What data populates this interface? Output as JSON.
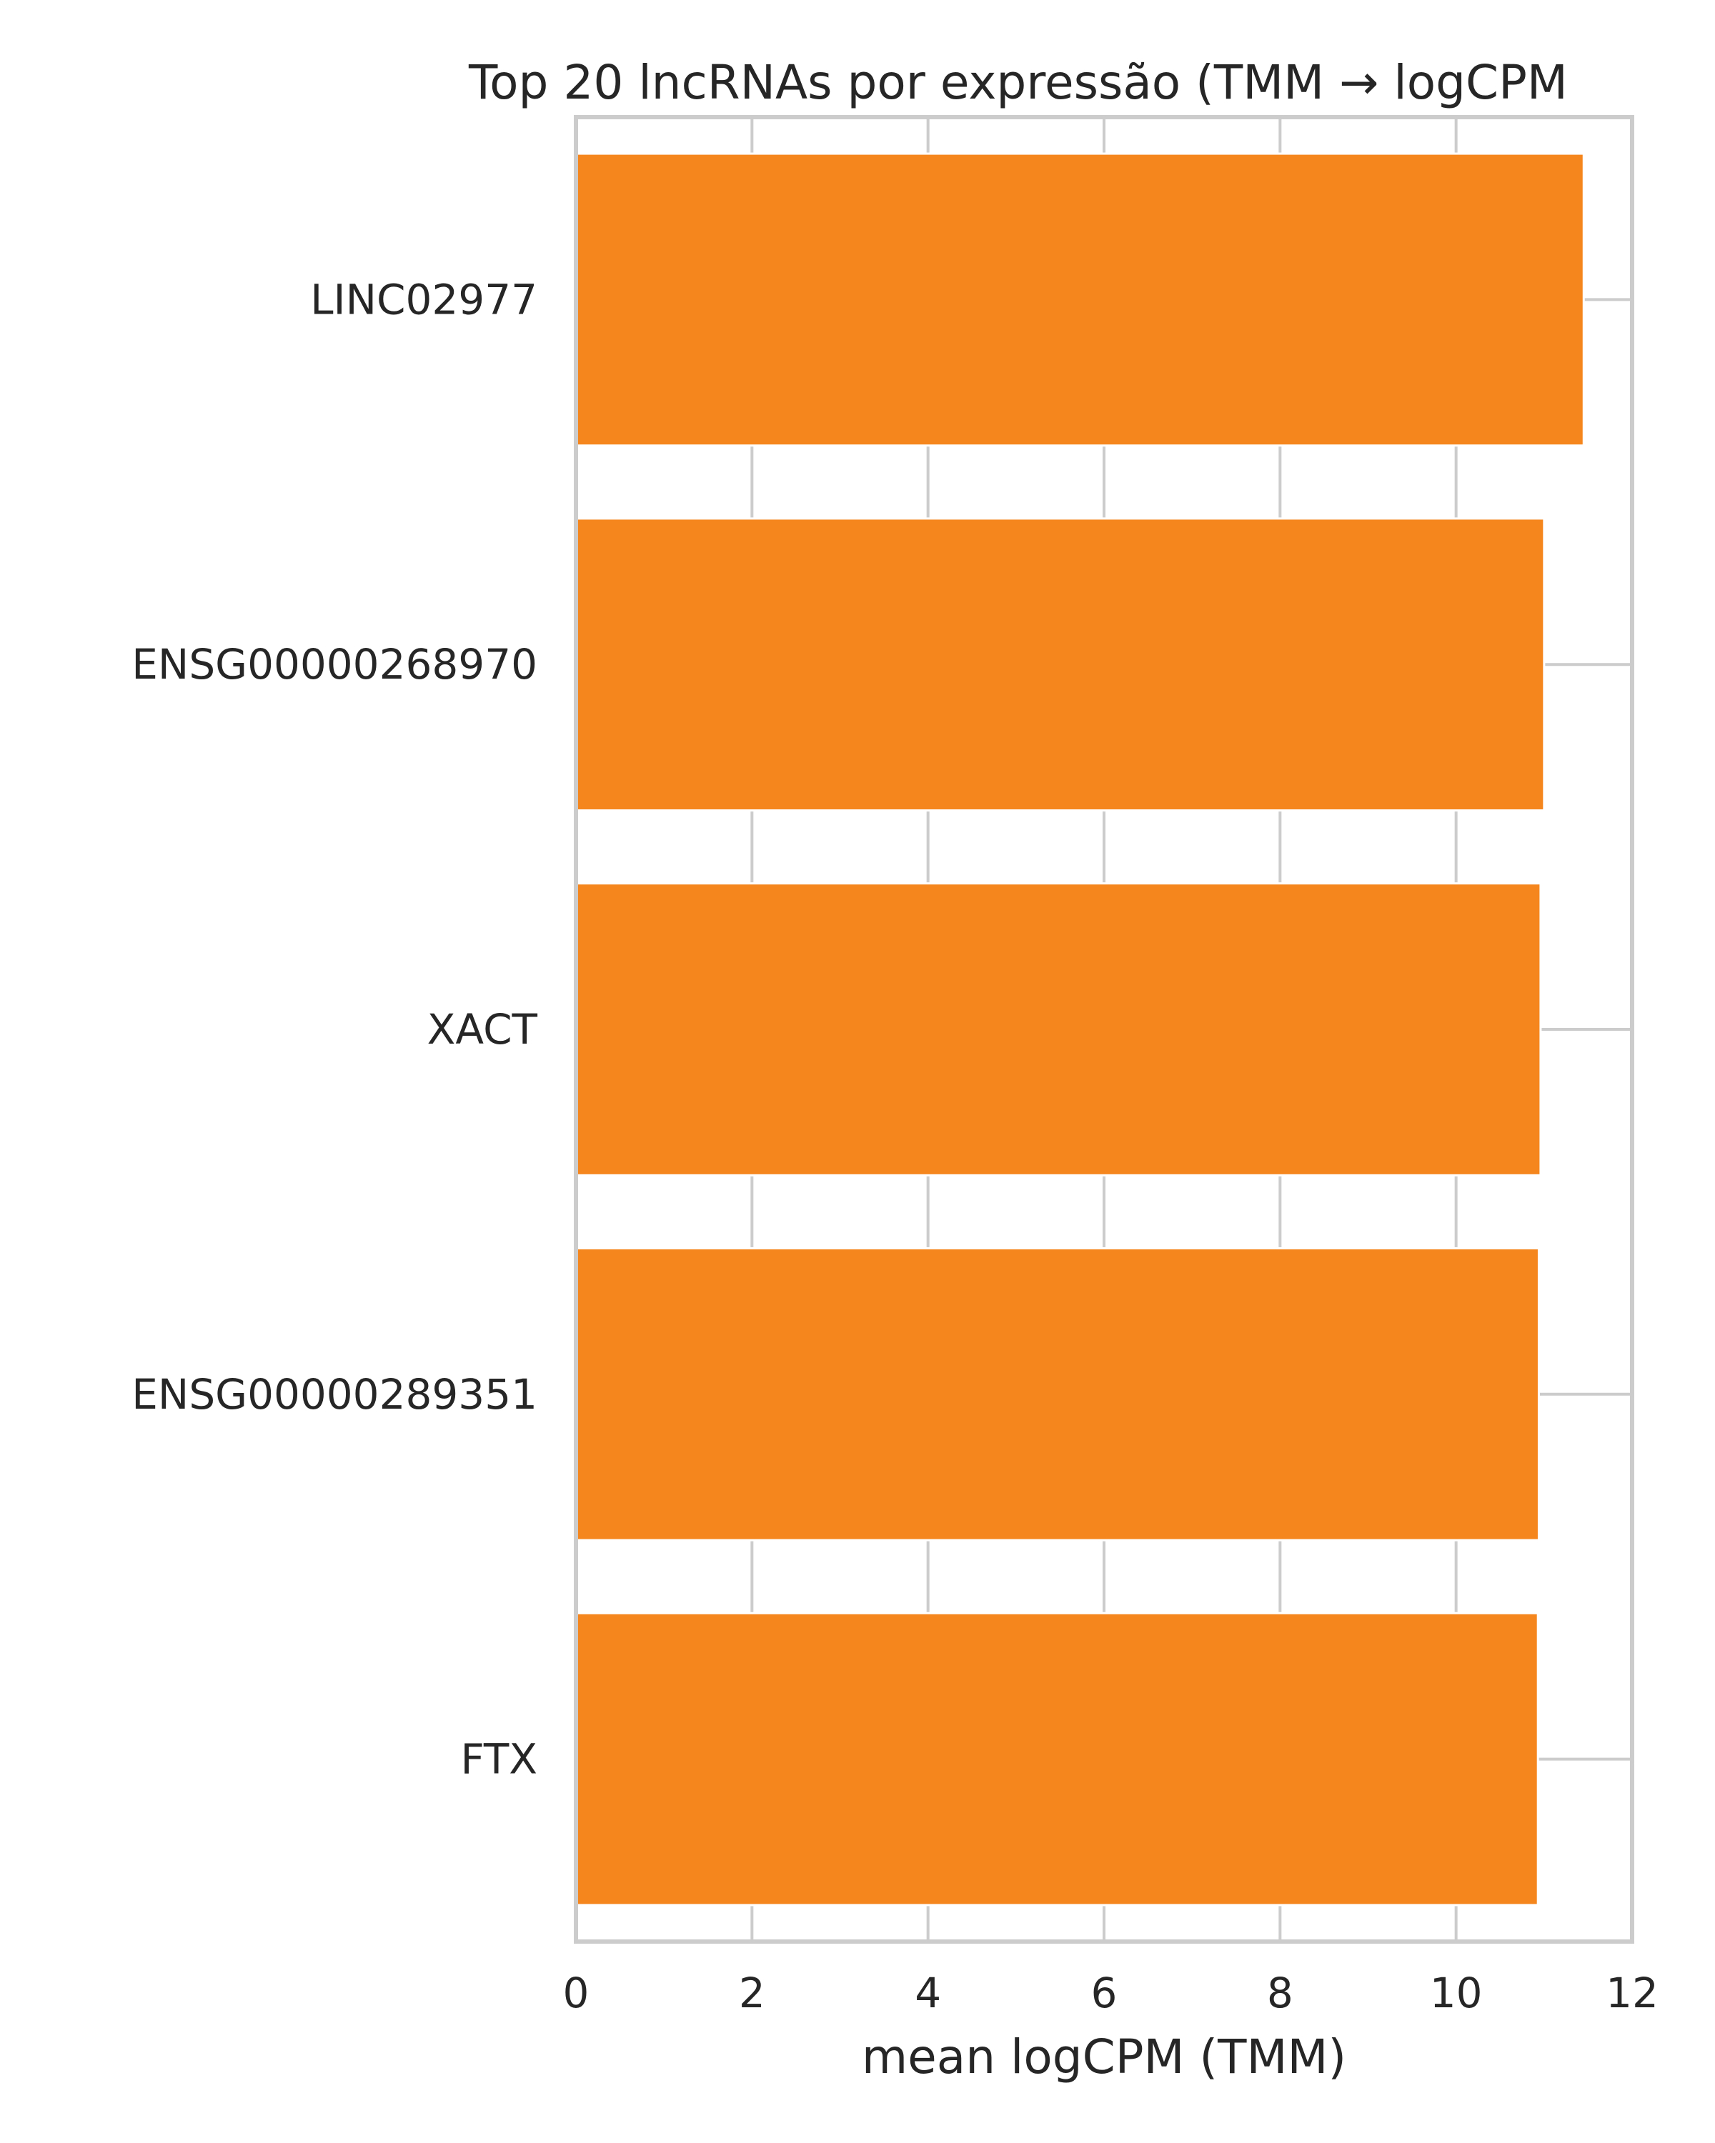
{
  "colors": {
    "bar": "#f5861d",
    "grid": "#cccccc",
    "spine": "#cccccc",
    "text": "#262626",
    "background": "#ffffff"
  },
  "chart_data": {
    "type": "bar",
    "orientation": "horizontal",
    "title": "Top 20 lncRNAs por expressão (TMM → logCPM",
    "xlabel": "mean logCPM (TMM)",
    "ylabel": "",
    "xlim": [
      0,
      12
    ],
    "xticks": [
      0,
      2,
      4,
      6,
      8,
      10,
      12
    ],
    "grid": true,
    "categories": [
      "LINC02977",
      "ENSG00000268970",
      "XACT",
      "ENSG00000289351",
      "FTX"
    ],
    "values": [
      11.45,
      11.0,
      10.96,
      10.94,
      10.93
    ]
  }
}
